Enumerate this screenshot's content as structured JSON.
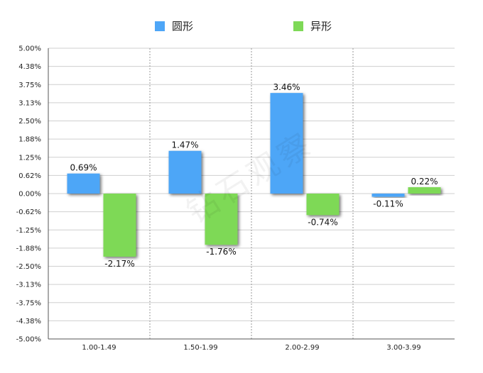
{
  "legend": {
    "round_label": "圆形",
    "fancy_label": "异形"
  },
  "watermark": "钻石观察",
  "colors": {
    "round": "#4ea6f7",
    "fancy": "#7ed957"
  },
  "chart_data": {
    "type": "bar",
    "categories": [
      "1.00-1.49",
      "1.50-1.99",
      "2.00-2.99",
      "3.00-3.99"
    ],
    "series": [
      {
        "name": "圆形",
        "values": [
          0.69,
          1.47,
          3.46,
          -0.11
        ],
        "labels": [
          "0.69%",
          "1.47%",
          "3.46%",
          "-0.11%"
        ]
      },
      {
        "name": "异形",
        "values": [
          -2.17,
          -1.76,
          -0.74,
          0.22
        ],
        "labels": [
          "-2.17%",
          "-1.76%",
          "-0.74%",
          "0.22%"
        ]
      }
    ],
    "ylim": [
      -5.0,
      5.0
    ],
    "yticks": [
      "5.00%",
      "4.38%",
      "3.75%",
      "3.13%",
      "2.50%",
      "1.88%",
      "1.25%",
      "0.62%",
      "0.00%",
      "-0.62%",
      "-1.25%",
      "-1.88%",
      "-2.50%",
      "-3.13%",
      "-3.75%",
      "-4.38%",
      "-5.00%"
    ],
    "grid": true,
    "legend_position": "top-center",
    "xlabel": "",
    "ylabel": ""
  }
}
